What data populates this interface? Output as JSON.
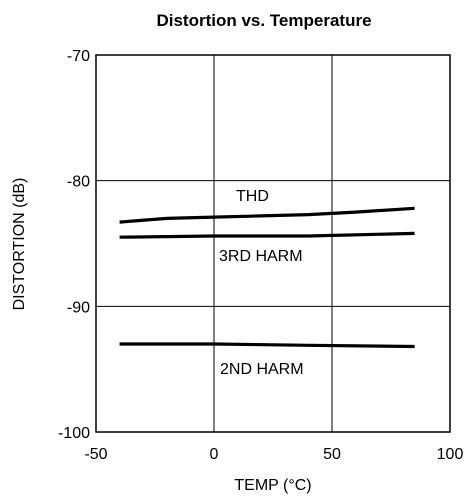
{
  "chart_data": {
    "type": "line",
    "title": "Distortion vs. Temperature",
    "xlabel": "TEMP (°C)",
    "ylabel": "DISTORTION (dB)",
    "xlim": [
      -50,
      100
    ],
    "ylim": [
      -100,
      -70
    ],
    "x_ticks": [
      -50,
      0,
      50,
      100
    ],
    "y_ticks": [
      -70,
      -80,
      -90,
      -100
    ],
    "grid": true,
    "series": [
      {
        "name": "THD",
        "x": [
          -40,
          -20,
          0,
          20,
          40,
          60,
          85
        ],
        "y": [
          -83.3,
          -83.0,
          -82.9,
          -82.8,
          -82.7,
          -82.5,
          -82.2
        ]
      },
      {
        "name": "3RD HARM",
        "x": [
          -40,
          0,
          40,
          85
        ],
        "y": [
          -84.5,
          -84.4,
          -84.4,
          -84.2
        ]
      },
      {
        "name": "2ND HARM",
        "x": [
          -40,
          0,
          40,
          85
        ],
        "y": [
          -93.0,
          -93.0,
          -93.1,
          -93.2
        ]
      }
    ],
    "color": "#000000"
  }
}
